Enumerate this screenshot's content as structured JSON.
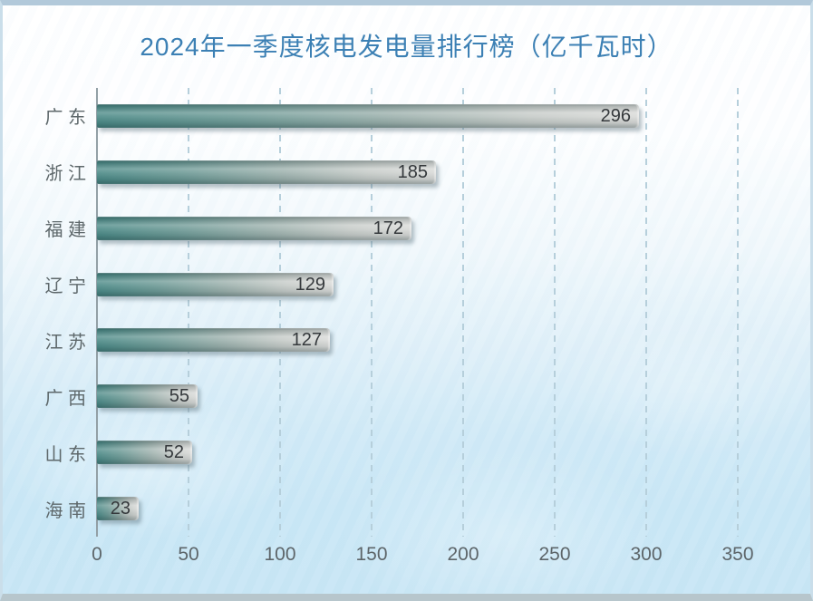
{
  "page": {
    "title": "2024年一季度核电发电量排行榜（亿千瓦时）"
  },
  "chart_data": {
    "type": "bar",
    "orientation": "horizontal",
    "title": "2024年一季度核电发电量排行榜（亿千瓦时）",
    "categories": [
      "广 东",
      "浙 江",
      "福 建",
      "辽 宁",
      "江 苏",
      "广 西",
      "山 东",
      "海 南"
    ],
    "values": [
      296,
      185,
      172,
      129,
      127,
      55,
      52,
      23
    ],
    "value_labels_position": "inside-end",
    "xlabel": "",
    "ylabel": "",
    "xlim": [
      0,
      350
    ],
    "x_ticks": [
      0,
      50,
      100,
      150,
      200,
      250,
      300,
      350
    ],
    "grid": "vertical-dashed",
    "legend": "none",
    "colors": {
      "title": "#3c80b4",
      "category_label": "#5e686b",
      "tick_label": "#5d6569",
      "value_label": "#35393c",
      "bar_gradient_start": "#4d8b88",
      "bar_gradient_end": "#d9dad8",
      "gridline": "#b6cfdb",
      "axis_line": "#93a0a6",
      "background_top": "#ffffff",
      "background_bottom": "#c8e6f5",
      "frame": "#b2c9da"
    }
  }
}
